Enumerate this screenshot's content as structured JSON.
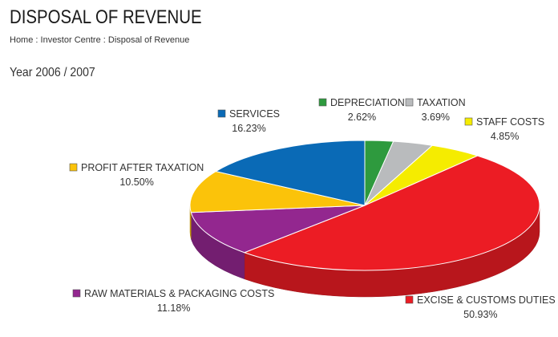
{
  "header": {
    "title": "DISPOSAL OF REVENUE",
    "breadcrumb": [
      "Home",
      "Investor Centre",
      "Disposal of Revenue"
    ],
    "breadcrumb_separator": " : "
  },
  "year_label": "Year 2006 / 2007",
  "chart_data": {
    "type": "pie",
    "style": "3d",
    "title": "",
    "series": [
      {
        "name": "DEPRECIATION",
        "value": 2.62,
        "label": "2.62%",
        "color": "#2e9a3e"
      },
      {
        "name": "TAXATION",
        "value": 3.69,
        "label": "3.69%",
        "color": "#b9bbbd"
      },
      {
        "name": "STAFF COSTS",
        "value": 4.85,
        "label": "4.85%",
        "color": "#f5ec00"
      },
      {
        "name": "EXCISE & CUSTOMS DUTIES",
        "value": 50.93,
        "label": "50.93%",
        "color": "#ec1c24"
      },
      {
        "name": "RAW MATERIALS & PACKAGING COSTS",
        "value": 11.18,
        "label": "11.18%",
        "color": "#93278f"
      },
      {
        "name": "PROFIT AFTER TAXATION",
        "value": 10.5,
        "label": "10.50%",
        "color": "#fbc30a"
      },
      {
        "name": "SERVICES",
        "value": 16.23,
        "label": "16.23%",
        "color": "#0a6ab6"
      }
    ]
  }
}
